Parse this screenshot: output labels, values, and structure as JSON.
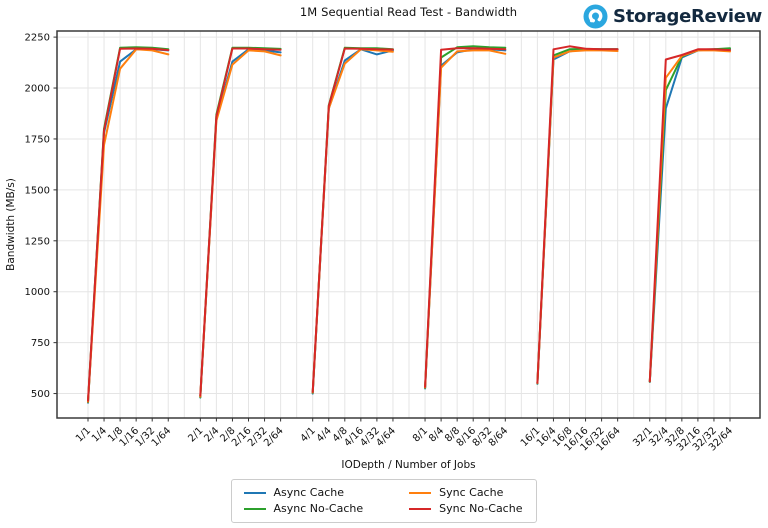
{
  "header": {
    "title": "1M Sequential Read Test - Bandwidth",
    "brand": {
      "name": "StorageReview",
      "icon": "storagereview-drop-icon",
      "icon_color": "#2ba7df",
      "text_color": "#13293f"
    }
  },
  "chart_data": {
    "type": "line",
    "title": "1M Sequential Read Test - Bandwidth",
    "xlabel": "IODepth / Number of Jobs",
    "ylabel": "Bandwidth (MB/s)",
    "ylim": [
      380,
      2280
    ],
    "yticks": [
      500,
      750,
      1000,
      1250,
      1500,
      1750,
      2000,
      2250
    ],
    "grid": true,
    "legend_position": "bottom",
    "group_size": 6,
    "group_gap_slots": 2,
    "categories": [
      "1/1",
      "1/4",
      "1/8",
      "1/16",
      "1/32",
      "1/64",
      "2/1",
      "2/4",
      "2/8",
      "2/16",
      "2/32",
      "2/64",
      "4/1",
      "4/4",
      "4/8",
      "4/16",
      "4/32",
      "4/64",
      "8/1",
      "8/4",
      "8/8",
      "8/16",
      "8/32",
      "8/64",
      "16/1",
      "16/4",
      "16/8",
      "16/16",
      "16/32",
      "16/64",
      "32/1",
      "32/4",
      "32/8",
      "32/16",
      "32/32",
      "32/64"
    ],
    "series": [
      {
        "name": "Async Cache",
        "color": "#1f77b4",
        "values": [
          455,
          1780,
          2130,
          2190,
          2190,
          2185,
          480,
          1850,
          2130,
          2190,
          2185,
          2175,
          500,
          1900,
          2135,
          2190,
          2165,
          2185,
          525,
          2110,
          2175,
          2190,
          2190,
          2185,
          548,
          2140,
          2180,
          2190,
          2190,
          2190,
          557,
          1900,
          2150,
          2185,
          2190,
          2190
        ]
      },
      {
        "name": "Async No-Cache",
        "color": "#2ca02c",
        "values": [
          458,
          1800,
          2198,
          2200,
          2198,
          2190,
          482,
          1870,
          2198,
          2198,
          2195,
          2192,
          503,
          1915,
          2198,
          2195,
          2195,
          2190,
          528,
          2150,
          2200,
          2205,
          2200,
          2198,
          550,
          2160,
          2190,
          2192,
          2190,
          2190,
          558,
          1990,
          2155,
          2188,
          2190,
          2195
        ]
      },
      {
        "name": "Sync Cache",
        "color": "#ff7f0e",
        "values": [
          460,
          1720,
          2095,
          2190,
          2185,
          2165,
          485,
          1840,
          2115,
          2185,
          2180,
          2160,
          505,
          1900,
          2120,
          2190,
          2185,
          2178,
          530,
          2100,
          2180,
          2185,
          2185,
          2168,
          552,
          2150,
          2180,
          2185,
          2185,
          2182,
          560,
          2050,
          2158,
          2185,
          2185,
          2180
        ]
      },
      {
        "name": "Sync No-Cache",
        "color": "#d62728",
        "values": [
          465,
          1790,
          2193,
          2194,
          2193,
          2186,
          490,
          1860,
          2194,
          2194,
          2190,
          2188,
          508,
          1912,
          2194,
          2193,
          2190,
          2189,
          533,
          2188,
          2195,
          2195,
          2193,
          2190,
          553,
          2190,
          2205,
          2193,
          2190,
          2190,
          560,
          2140,
          2162,
          2190,
          2190,
          2186
        ]
      }
    ],
    "legend_columns": [
      [
        "Async Cache",
        "Async No-Cache"
      ],
      [
        "Sync Cache",
        "Sync No-Cache"
      ]
    ]
  },
  "style": {
    "grid_color": "#e5e5e5",
    "spine_color": "#3a3a3a",
    "tick_color": "#333333",
    "label_color": "#111111"
  }
}
